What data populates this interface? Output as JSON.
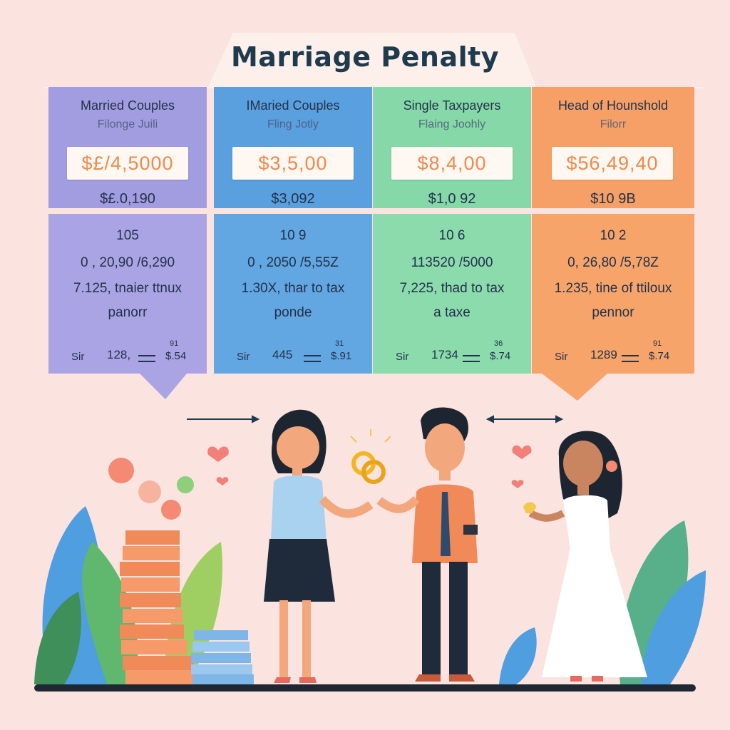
{
  "title": "Marriage Penalty",
  "cards": [
    {
      "title": "Married Couples",
      "subtitle": "Filonge Juili",
      "amount": "$£/4,5000",
      "second": "$£.0,190",
      "line1": "105",
      "line2": "0 , 20,90 /6,290",
      "line3": "7.125, tnaier ttnux",
      "line4": "panorr",
      "footer_label": "Sir",
      "footer_value": "128,",
      "footer_tiny": "91",
      "footer_right": "$.54"
    },
    {
      "title": "IMaried Couples",
      "subtitle": "Fling Jotly",
      "amount": "$3,5,00",
      "second": "$3,092",
      "line1": "10 9",
      "line2": "0 , 2050 /5,55Z",
      "line3": "1.30X, thar to tax",
      "line4": "ponde",
      "footer_label": "Sir",
      "footer_value": "445",
      "footer_tiny": "31",
      "footer_right": "$.91"
    },
    {
      "title": "Single Taxpayers",
      "subtitle": "Flaing Joohly",
      "amount": "$8,4,00",
      "second": "$1,0 92",
      "line1": "10 6",
      "line2": "113520 /5000",
      "line3": "7,225, thad to tax",
      "line4": "a taxe",
      "footer_label": "Sir",
      "footer_value": "1734",
      "footer_tiny": "36",
      "footer_right": "$.74"
    },
    {
      "title": "Head of Hounshold",
      "subtitle": "Filorr",
      "amount": "$56,49,40",
      "second": "$10 9B",
      "line1": "10 2",
      "line2": "0, 26,80 /5,78Z",
      "line3": "1.235, tine of ttiloux",
      "line4": "pennor",
      "footer_label": "Sir",
      "footer_value": "1289",
      "footer_tiny": "91",
      "footer_right": "$.74"
    }
  ],
  "colors": {
    "background": "#fbe3df",
    "card1": "#a29ce0",
    "card2": "#5aa0df",
    "card3": "#86d8a9",
    "card4": "#f6a067",
    "amount_text": "#f08a4b",
    "title_text": "#1f3a4d"
  },
  "icons": [
    "heart-icon",
    "wedding-rings-icon",
    "arrow-icon",
    "coin-stack-icon"
  ]
}
